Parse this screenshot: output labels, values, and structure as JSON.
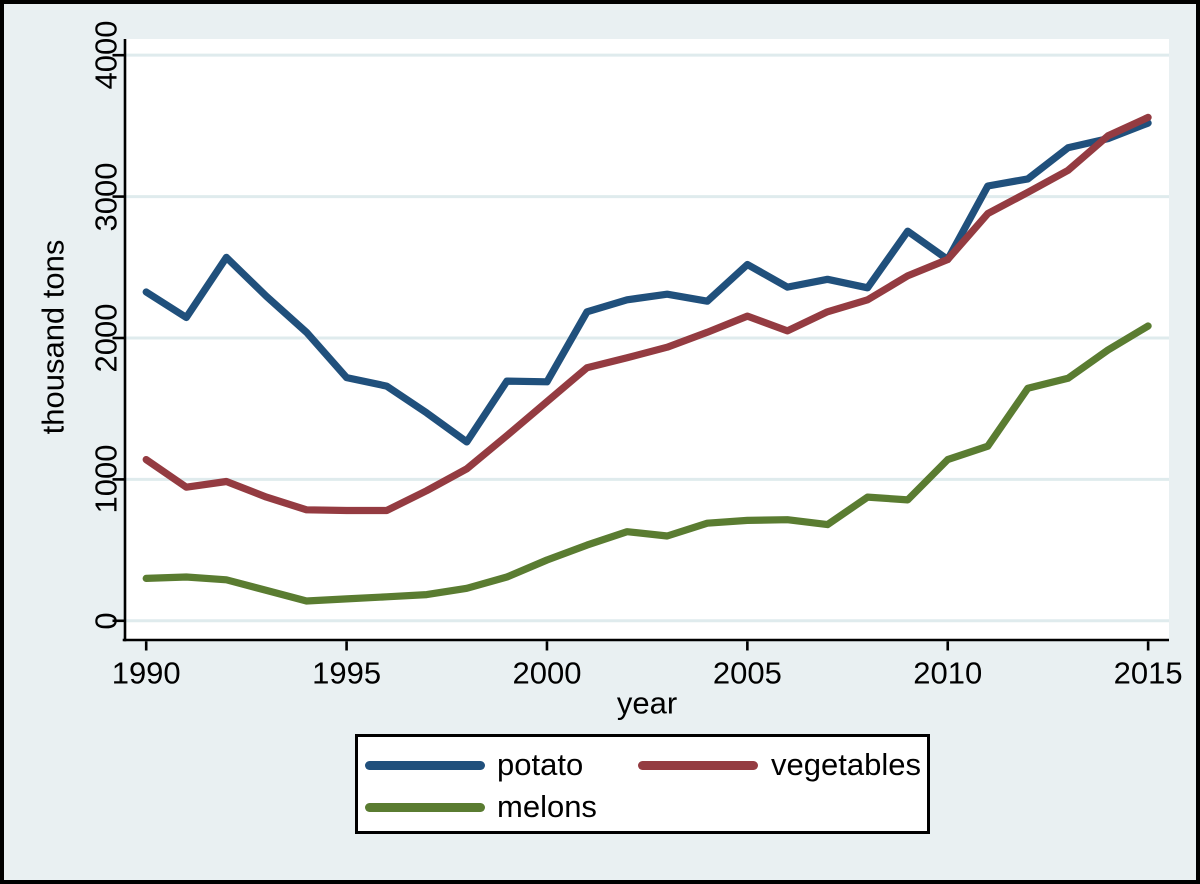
{
  "figure": {
    "background_color": "#e9f0f2",
    "frame_color": "#000000",
    "plot_background": "#ffffff"
  },
  "chart_data": {
    "type": "line",
    "title": "",
    "xlabel": "year",
    "ylabel": "thousand tons",
    "xticks": [
      1990,
      1995,
      2000,
      2005,
      2010,
      2015
    ],
    "yticks": [
      0,
      1000,
      2000,
      3000,
      4000
    ],
    "xlim": [
      1990,
      2015
    ],
    "ylim": [
      0,
      4000
    ],
    "grid": "horizontal",
    "gridline_color": "#dfebed",
    "legend_position": "below-center",
    "years": [
      1990,
      1991,
      1992,
      1993,
      1994,
      1995,
      1996,
      1997,
      1998,
      1999,
      2000,
      2001,
      2002,
      2003,
      2004,
      2005,
      2006,
      2007,
      2008,
      2009,
      2010,
      2011,
      2012,
      2013,
      2014,
      2015
    ],
    "series": [
      {
        "name": "potato",
        "color": "#20507c",
        "values": [
          2325,
          2145,
          2570,
          2295,
          2040,
          1720,
          1660,
          1470,
          1265,
          1695,
          1690,
          2185,
          2270,
          2310,
          2260,
          2520,
          2360,
          2415,
          2355,
          2755,
          2555,
          3075,
          3125,
          3345,
          3410,
          3520
        ]
      },
      {
        "name": "vegetables",
        "color": "#943b41",
        "values": [
          1140,
          945,
          985,
          875,
          785,
          780,
          780,
          920,
          1075,
          1310,
          1550,
          1790,
          1860,
          1935,
          2040,
          2155,
          2050,
          2185,
          2270,
          2440,
          2555,
          2880,
          3030,
          3185,
          3430,
          3560
        ]
      },
      {
        "name": "melons",
        "color": "#5a7c31",
        "values": [
          300,
          310,
          290,
          215,
          140,
          155,
          170,
          185,
          230,
          310,
          430,
          535,
          630,
          600,
          690,
          710,
          715,
          680,
          875,
          855,
          1140,
          1235,
          1645,
          1715,
          1915,
          2085
        ]
      }
    ]
  }
}
